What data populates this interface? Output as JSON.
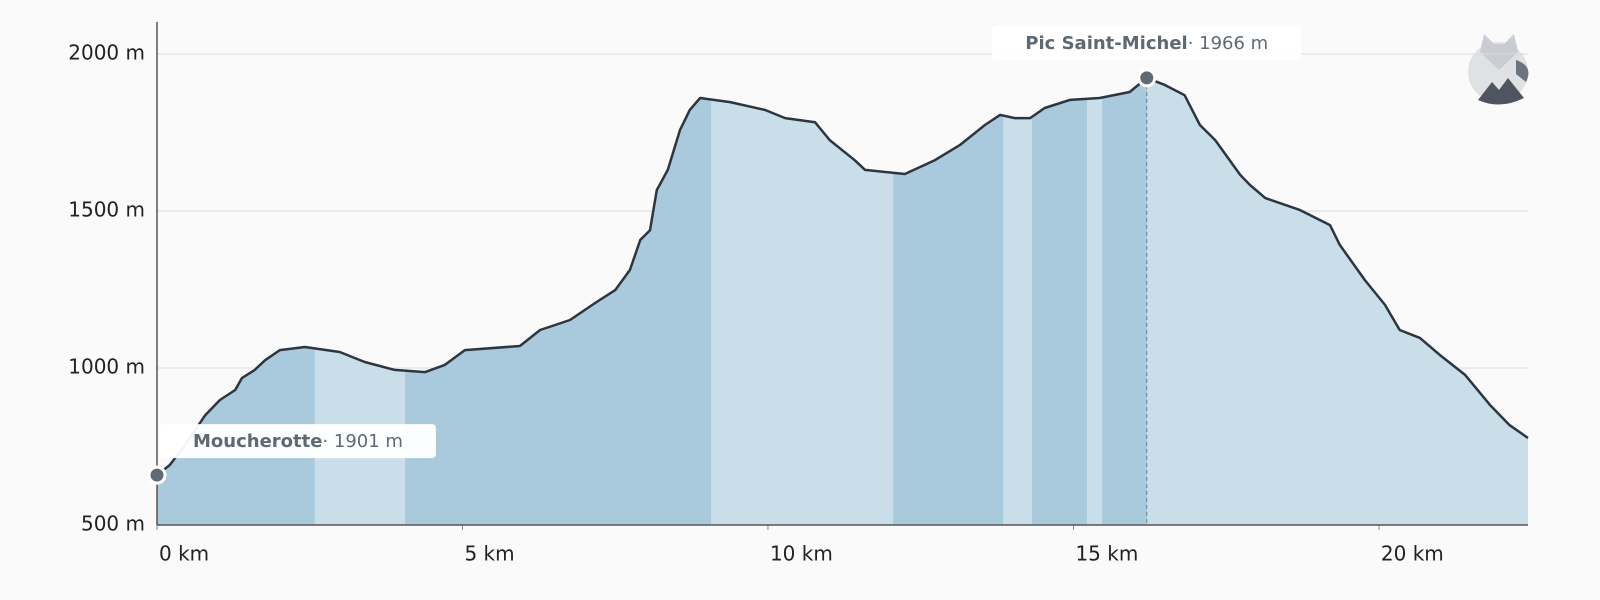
{
  "chart_data": {
    "type": "area",
    "x": [
      0,
      0.21,
      0.46,
      0.79,
      1.03,
      1.28,
      1.39,
      1.6,
      1.77,
      2.01,
      2.42,
      2.99,
      3.4,
      3.89,
      4.39,
      4.71,
      5.04,
      5.94,
      6.27,
      6.76,
      7.17,
      7.5,
      7.74,
      7.91,
      8.07,
      8.18,
      8.36,
      8.56,
      8.72,
      8.89,
      9.38,
      9.95,
      10.28,
      10.77,
      11.01,
      11.42,
      11.59,
      12.24,
      12.73,
      13.14,
      13.55,
      13.8,
      14.04,
      14.29,
      14.53,
      14.94,
      15.43,
      15.92,
      16.2,
      16.5,
      16.82,
      17.07,
      17.32,
      17.73,
      17.89,
      18.14,
      18.71,
      19.2,
      19.36,
      19.77,
      20.1,
      20.34,
      20.67,
      21.0,
      21.41,
      21.82,
      22.14,
      22.44
    ],
    "values": [
      659,
      691,
      755,
      850,
      898,
      930,
      968,
      994,
      1025,
      1057,
      1067,
      1051,
      1019,
      994,
      987,
      1010,
      1057,
      1070,
      1121,
      1153,
      1207,
      1248,
      1312,
      1408,
      1439,
      1567,
      1631,
      1758,
      1822,
      1860,
      1847,
      1822,
      1796,
      1783,
      1726,
      1662,
      1631,
      1618,
      1662,
      1710,
      1774,
      1806,
      1796,
      1796,
      1828,
      1854,
      1860,
      1879,
      1924,
      1901,
      1869,
      1774,
      1726,
      1615,
      1583,
      1541,
      1503,
      1455,
      1392,
      1280,
      1201,
      1121,
      1096,
      1041,
      978,
      882,
      818,
      777
    ],
    "color": "#cadeea",
    "line_color": "#2b3640",
    "highlight_ranges": [
      [
        0,
        2.58
      ],
      [
        4.06,
        9.07
      ],
      [
        12.05,
        13.85
      ],
      [
        14.32,
        15.22
      ],
      [
        15.47,
        16.2
      ]
    ],
    "highlight_color": "#a9cadd",
    "xlim": [
      0,
      22.44
    ],
    "ylim": [
      500,
      2102
    ],
    "xticks": [
      {
        "value": 0,
        "label": "0 km"
      },
      {
        "value": 5,
        "label": "5 km"
      },
      {
        "value": 10,
        "label": "10 km"
      },
      {
        "value": 15,
        "label": "15 km"
      },
      {
        "value": 20,
        "label": "20 km"
      }
    ],
    "yticks": [
      {
        "value": 500,
        "label": "500 m"
      },
      {
        "value": 1000,
        "label": "1000 m"
      },
      {
        "value": 1500,
        "label": "1500 m"
      },
      {
        "value": 2000,
        "label": "2000 m"
      }
    ],
    "grid": true,
    "annotations": [
      {
        "label": "Moucherotte",
        "detail": "· 1901 m",
        "x": 0,
        "y": 659
      },
      {
        "label": "Pic Saint-Michel",
        "detail": "· 1966 m",
        "x": 16.2,
        "y": 1924
      }
    ]
  }
}
